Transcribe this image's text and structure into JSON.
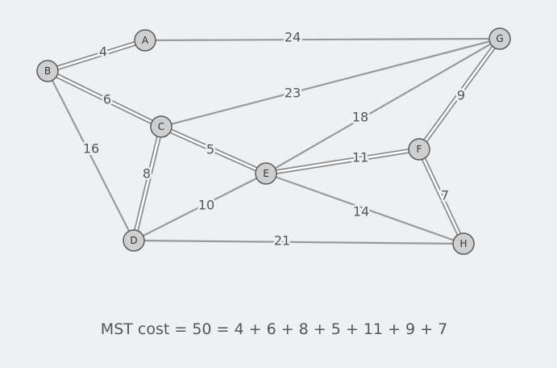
{
  "graph": {
    "nodes": [
      {
        "id": "A",
        "label": "A"
      },
      {
        "id": "B",
        "label": "B"
      },
      {
        "id": "C",
        "label": "C"
      },
      {
        "id": "D",
        "label": "D"
      },
      {
        "id": "E",
        "label": "E"
      },
      {
        "id": "F",
        "label": "F"
      },
      {
        "id": "G",
        "label": "G"
      },
      {
        "id": "H",
        "label": "H"
      }
    ],
    "edges": [
      {
        "from": "B",
        "to": "A",
        "weight": "4",
        "mst": true
      },
      {
        "from": "A",
        "to": "G",
        "weight": "24",
        "mst": false
      },
      {
        "from": "B",
        "to": "C",
        "weight": "6",
        "mst": true
      },
      {
        "from": "B",
        "to": "D",
        "weight": "16",
        "mst": false
      },
      {
        "from": "C",
        "to": "G",
        "weight": "23",
        "mst": false
      },
      {
        "from": "C",
        "to": "D",
        "weight": "8",
        "mst": true
      },
      {
        "from": "C",
        "to": "E",
        "weight": "5",
        "mst": true
      },
      {
        "from": "E",
        "to": "G",
        "weight": "18",
        "mst": false
      },
      {
        "from": "G",
        "to": "F",
        "weight": "9",
        "mst": true
      },
      {
        "from": "E",
        "to": "F",
        "weight": "11",
        "mst": true
      },
      {
        "from": "D",
        "to": "E",
        "weight": "10",
        "mst": false
      },
      {
        "from": "E",
        "to": "H",
        "weight": "14",
        "mst": false
      },
      {
        "from": "F",
        "to": "H",
        "weight": "7",
        "mst": true
      },
      {
        "from": "D",
        "to": "H",
        "weight": "21",
        "mst": false
      }
    ]
  },
  "caption": "MST cost = 50 = 4 + 6 + 8 + 5 + 11 + 9 + 7"
}
